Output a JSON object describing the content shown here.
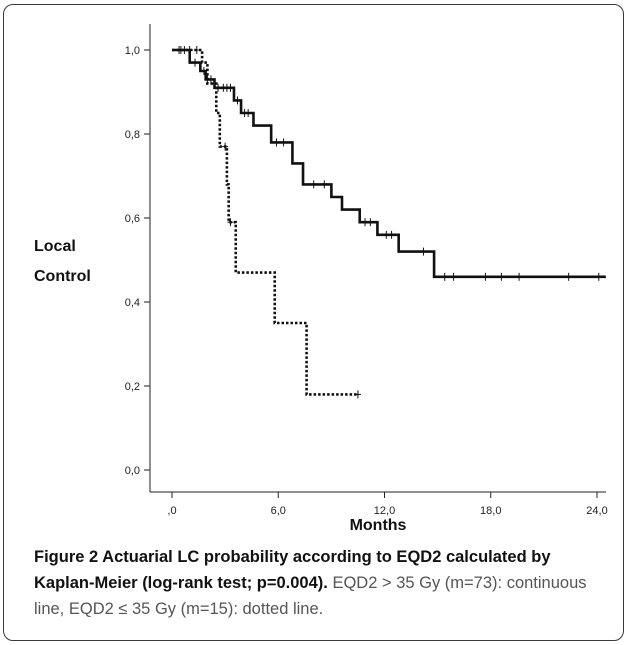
{
  "chart_data": {
    "type": "line",
    "title": "",
    "xlabel": "Months",
    "ylabel_lines": [
      "Local",
      "Control"
    ],
    "xlim": [
      -1,
      24.5
    ],
    "ylim": [
      -0.05,
      1.05
    ],
    "x_ticks": [
      0,
      6,
      12,
      18,
      24
    ],
    "x_tick_labels": [
      ",0",
      "6,0",
      "12,0",
      "18,0",
      "24,0"
    ],
    "y_ticks": [
      0,
      0.2,
      0.4,
      0.6,
      0.8,
      1.0
    ],
    "y_tick_labels": [
      "0,0",
      "0,2",
      "0,4",
      "0,6",
      "0,8",
      "1,0"
    ],
    "grid": false,
    "series": [
      {
        "style": "solid",
        "color": "#111111",
        "steps": [
          [
            0,
            1.0
          ],
          [
            1.0,
            0.97
          ],
          [
            1.6,
            0.95
          ],
          [
            1.9,
            0.93
          ],
          [
            2.4,
            0.91
          ],
          [
            3.5,
            0.88
          ],
          [
            3.9,
            0.85
          ],
          [
            4.6,
            0.82
          ],
          [
            5.6,
            0.78
          ],
          [
            6.8,
            0.73
          ],
          [
            7.4,
            0.68
          ],
          [
            9.0,
            0.65
          ],
          [
            9.6,
            0.62
          ],
          [
            10.6,
            0.59
          ],
          [
            11.6,
            0.56
          ],
          [
            12.8,
            0.52
          ],
          [
            14.8,
            0.46
          ],
          [
            24.5,
            0.46
          ]
        ],
        "censored": [
          [
            0.4,
            1.0
          ],
          [
            0.7,
            1.0
          ],
          [
            1.3,
            0.97
          ],
          [
            1.8,
            0.95
          ],
          [
            2.0,
            0.93
          ],
          [
            2.2,
            0.93
          ],
          [
            2.6,
            0.91
          ],
          [
            2.9,
            0.91
          ],
          [
            3.1,
            0.91
          ],
          [
            3.3,
            0.91
          ],
          [
            3.7,
            0.88
          ],
          [
            4.1,
            0.85
          ],
          [
            4.3,
            0.85
          ],
          [
            5.9,
            0.78
          ],
          [
            6.3,
            0.78
          ],
          [
            8.0,
            0.68
          ],
          [
            8.6,
            0.68
          ],
          [
            10.9,
            0.59
          ],
          [
            11.2,
            0.59
          ],
          [
            12.1,
            0.56
          ],
          [
            12.4,
            0.56
          ],
          [
            14.2,
            0.52
          ],
          [
            15.4,
            0.46
          ],
          [
            15.9,
            0.46
          ],
          [
            17.7,
            0.46
          ],
          [
            18.6,
            0.46
          ],
          [
            19.6,
            0.46
          ],
          [
            22.4,
            0.46
          ],
          [
            24.1,
            0.46
          ]
        ]
      },
      {
        "style": "dotted",
        "color": "#111111",
        "steps": [
          [
            0,
            1.0
          ],
          [
            1.7,
            0.97
          ],
          [
            2.0,
            0.92
          ],
          [
            2.5,
            0.85
          ],
          [
            2.7,
            0.77
          ],
          [
            3.1,
            0.68
          ],
          [
            3.2,
            0.59
          ],
          [
            3.6,
            0.47
          ],
          [
            5.8,
            0.35
          ],
          [
            7.6,
            0.18
          ],
          [
            10.5,
            0.18
          ]
        ],
        "censored": [
          [
            0.5,
            1.0
          ],
          [
            1.0,
            1.0
          ],
          [
            1.4,
            1.0
          ],
          [
            2.4,
            0.92
          ],
          [
            3.0,
            0.77
          ],
          [
            3.3,
            0.59
          ],
          [
            10.5,
            0.18
          ]
        ]
      }
    ]
  },
  "caption": {
    "bold": "Figure 2 Actuarial LC probability according to EQD2 calculated by Kaplan-Meier (log-rank test; p=0.004).",
    "rest": " EQD2 > 35 Gy (m=73): continuous line, EQD2 ≤ 35 Gy (m=15): dotted line."
  }
}
